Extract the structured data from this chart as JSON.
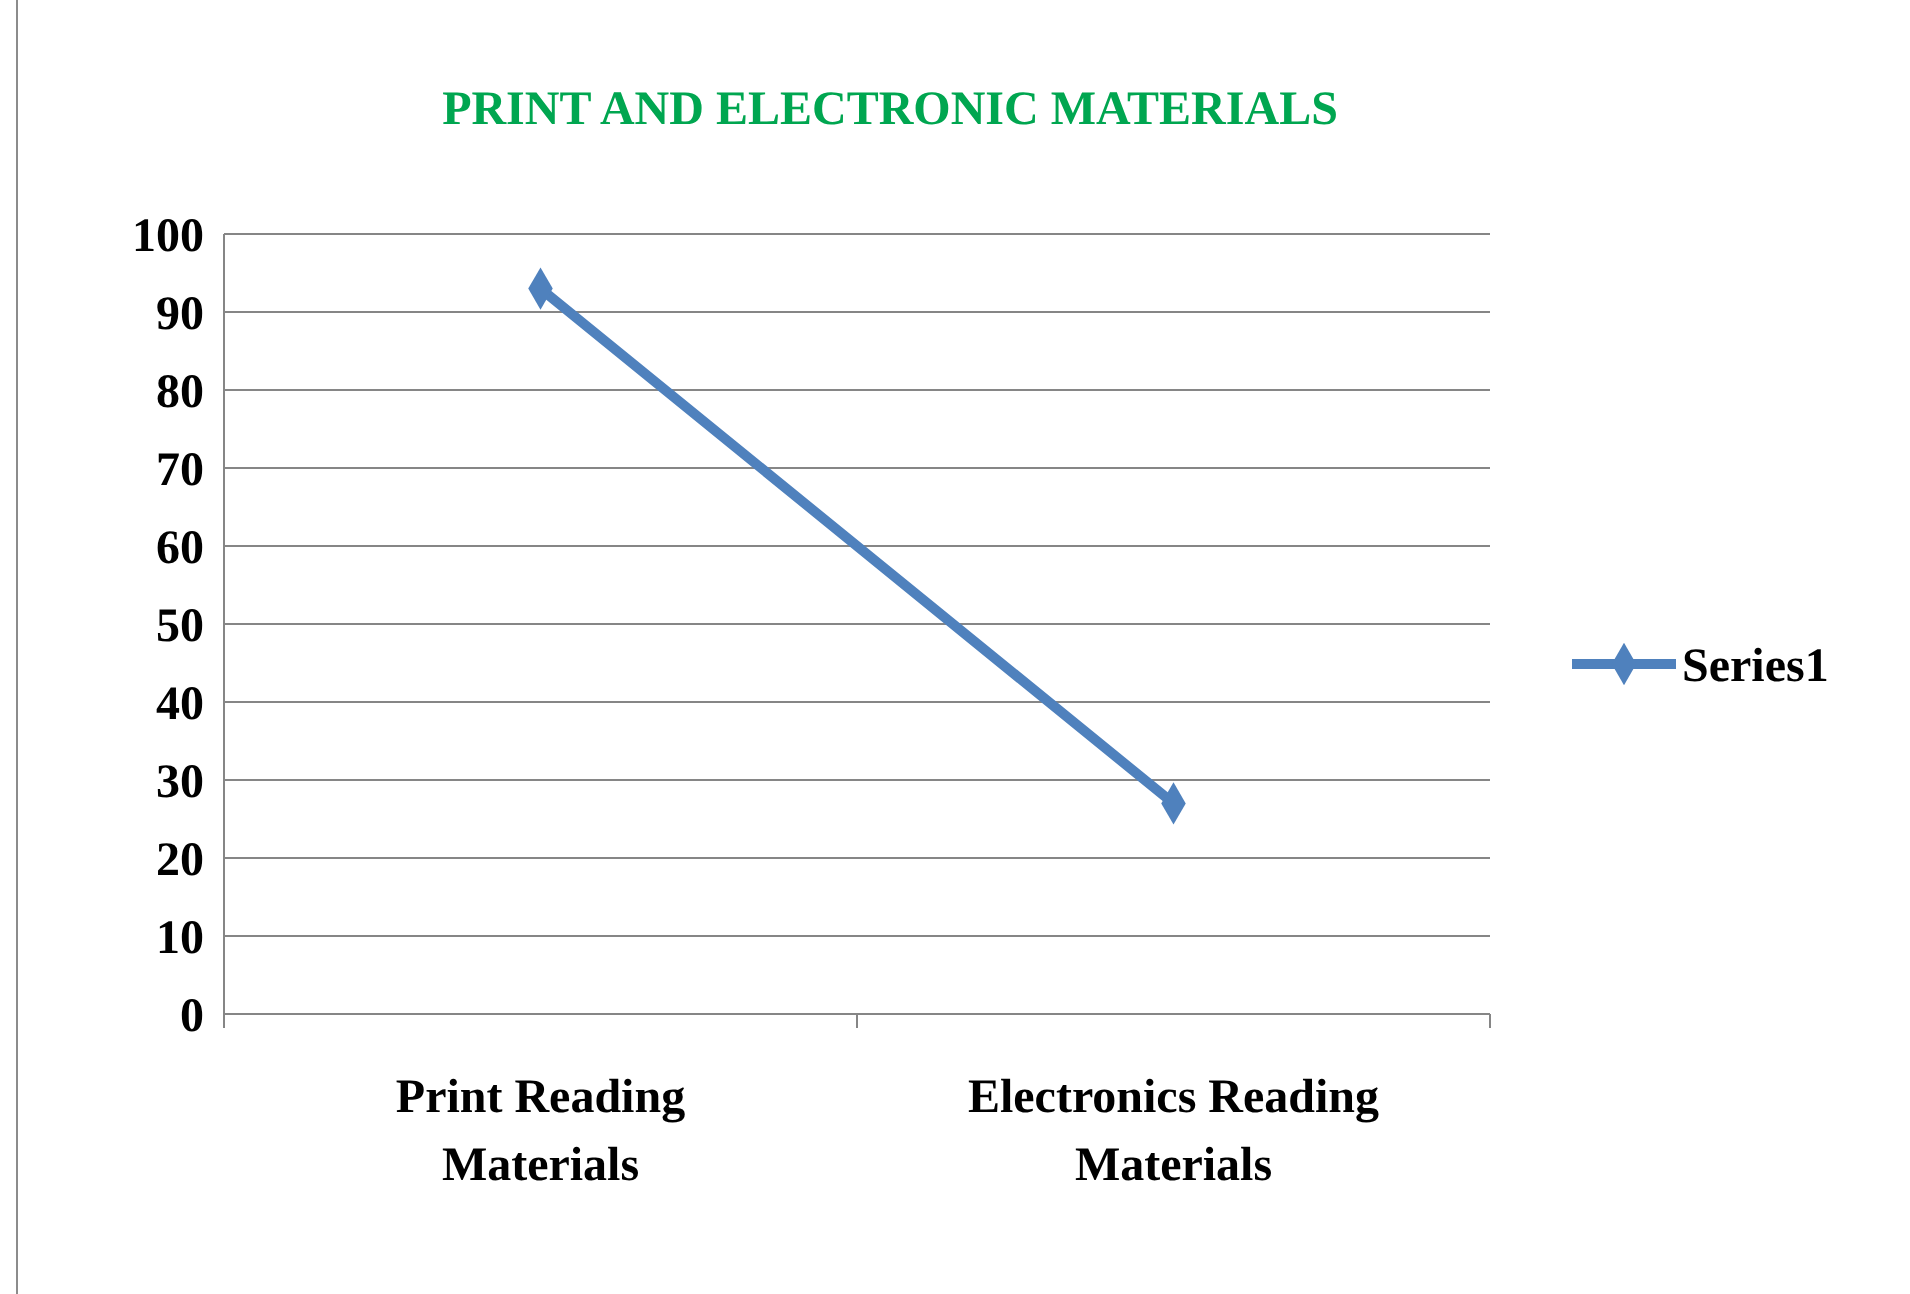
{
  "chart_data": {
    "type": "line",
    "title": "PRINT AND ELECTRONIC MATERIALS",
    "categories": [
      "Print Reading Materials",
      "Electronics Reading Materials"
    ],
    "series": [
      {
        "name": "Series1",
        "color": "#4f81bd",
        "values": [
          93,
          27
        ]
      }
    ],
    "ylim": [
      0,
      100
    ],
    "yticks": [
      0,
      10,
      20,
      30,
      40,
      50,
      60,
      70,
      80,
      90,
      100
    ],
    "grid": "y",
    "legend": "right",
    "marker": "diamond",
    "line_style": "solid"
  }
}
